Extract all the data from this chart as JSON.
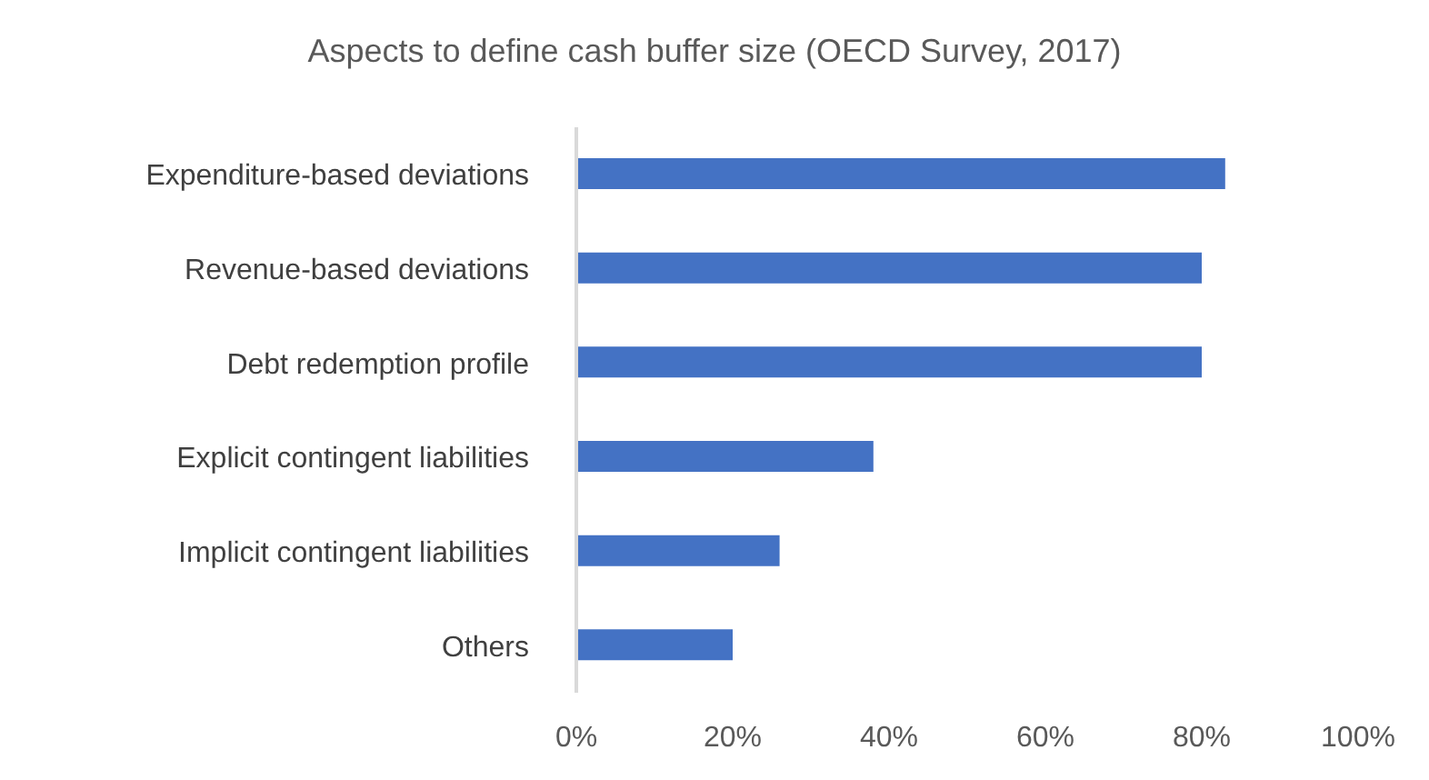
{
  "chart_data": {
    "type": "bar",
    "orientation": "horizontal",
    "title": "Aspects to define cash buffer size (OECD Survey, 2017)",
    "categories": [
      "Expenditure-based deviations",
      "Revenue-based deviations",
      "Debt redemption profile",
      "Explicit contingent liabilities",
      "Implicit contingent liabilities",
      "Others"
    ],
    "values": [
      0.83,
      0.8,
      0.8,
      0.38,
      0.26,
      0.2
    ],
    "color": "#4472c4",
    "xlim": [
      0,
      1
    ],
    "xticks": [
      {
        "value": 0,
        "label": "0%"
      },
      {
        "value": 0.2,
        "label": "20%"
      },
      {
        "value": 0.4,
        "label": "40%"
      },
      {
        "value": 0.6,
        "label": "60%"
      },
      {
        "value": 0.8,
        "label": "80%"
      },
      {
        "value": 1,
        "label": "100%"
      }
    ],
    "grid": false,
    "legend": false
  }
}
